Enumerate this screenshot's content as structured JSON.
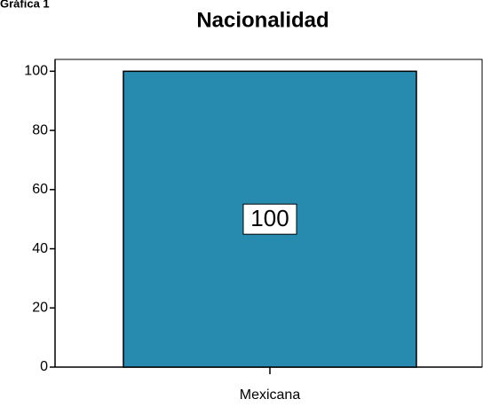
{
  "chart_data": {
    "type": "bar",
    "figure_label": "Gráfica 1",
    "title": "Nacionalidad",
    "categories": [
      "Mexicana"
    ],
    "values": [
      100
    ],
    "color": "#268bae",
    "ylim": [
      0,
      104
    ],
    "yticks": [
      0,
      20,
      40,
      60,
      80,
      100
    ],
    "grid": false
  }
}
